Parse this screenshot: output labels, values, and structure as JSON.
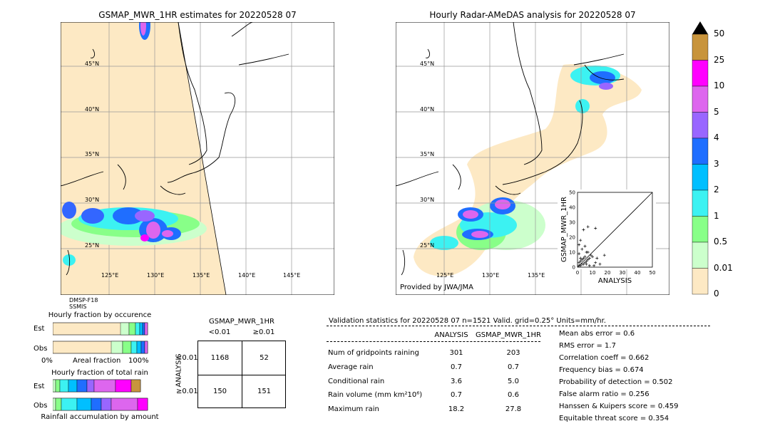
{
  "left_map": {
    "title": "GSMAP_MWR_1HR estimates for 20220528 07",
    "lat_labels": [
      "45°N",
      "40°N",
      "35°N",
      "30°N",
      "25°N"
    ],
    "lon_labels": [
      "125°E",
      "130°E",
      "135°E",
      "140°E",
      "145°E"
    ],
    "source_lines": [
      "DMSP-F18",
      "SSMIS"
    ]
  },
  "right_map": {
    "title": "Hourly Radar-AMeDAS analysis for 20220528 07",
    "lat_labels": [
      "45°N",
      "40°N",
      "35°N",
      "30°N",
      "25°N"
    ],
    "lon_labels": [
      "125°E",
      "130°E",
      "135°E"
    ],
    "credit": "Provided by JWA/JMA"
  },
  "colorbar": {
    "labels": [
      "50",
      "25",
      "10",
      "5",
      "4",
      "3",
      "2",
      "1",
      "0.5",
      "0.01",
      "0"
    ],
    "colors": [
      "#c8943c",
      "#ff00ff",
      "#dd66ee",
      "#9966ff",
      "#1f6eff",
      "#00bfff",
      "#3cf2f2",
      "#88ff88",
      "#ccffcc",
      "#fde9c4"
    ]
  },
  "occurrence": {
    "title": "Hourly fraction by occurence",
    "rows": [
      "Est",
      "Obs"
    ],
    "axis_left": "0%",
    "axis_mid": "Areal fraction",
    "axis_right": "100%"
  },
  "total_rain": {
    "title": "Hourly fraction of total rain",
    "rows": [
      "Est",
      "Obs"
    ],
    "footer": "Rainfall accumulation by amount"
  },
  "contingency": {
    "title": "GSMAP_MWR_1HR",
    "col_headers": [
      "<0.01",
      "≥0.01"
    ],
    "row_axis": "ANALYSIS",
    "row_headers": [
      "<0.01",
      "≥0.01"
    ],
    "cells": [
      [
        "1168",
        "52"
      ],
      [
        "150",
        "151"
      ]
    ]
  },
  "validation": {
    "header": "Validation statistics for 20220528 07  n=1521 Valid. grid=0.25° Units=mm/hr.",
    "col_headers": [
      "ANALYSIS",
      "GSMAP_MWR_1HR"
    ],
    "rows": [
      {
        "label": "Num of gridpoints raining",
        "a": "301",
        "b": "203"
      },
      {
        "label": "Average rain",
        "a": "0.7",
        "b": "0.7"
      },
      {
        "label": "Conditional rain",
        "a": "3.6",
        "b": "5.0"
      },
      {
        "label": "Rain volume (mm km²10⁶)",
        "a": "0.7",
        "b": "0.6"
      },
      {
        "label": "Maximum rain",
        "a": "18.2",
        "b": "27.8"
      }
    ],
    "scores": [
      "Mean abs error =    0.6",
      "RMS error =    1.7",
      "Correlation coeff =  0.662",
      "Frequency bias =  0.674",
      "Probability of detection =  0.502",
      "False alarm ratio =  0.256",
      "Hanssen & Kuipers score =  0.459",
      "Equitable threat score =  0.354"
    ]
  },
  "chart_data": {
    "type": "scatter",
    "xlabel": "ANALYSIS",
    "ylabel": "GSMAP_MWR_1HR",
    "xlim": [
      0,
      50
    ],
    "ylim": [
      0,
      50
    ],
    "ticks": [
      "0",
      "10",
      "20",
      "30",
      "40",
      "50"
    ],
    "points": [
      [
        1,
        1
      ],
      [
        2,
        1
      ],
      [
        3,
        2
      ],
      [
        1,
        3
      ],
      [
        4,
        2
      ],
      [
        2,
        4
      ],
      [
        5,
        3
      ],
      [
        3,
        5
      ],
      [
        6,
        4
      ],
      [
        4,
        6
      ],
      [
        7,
        5
      ],
      [
        5,
        7
      ],
      [
        8,
        6
      ],
      [
        6,
        2
      ],
      [
        2,
        6
      ],
      [
        9,
        8
      ],
      [
        10,
        7
      ],
      [
        7,
        10
      ],
      [
        12,
        3
      ],
      [
        15,
        2
      ],
      [
        18,
        8
      ],
      [
        3,
        12
      ],
      [
        5,
        14
      ],
      [
        1,
        9
      ],
      [
        2,
        18
      ],
      [
        4,
        25
      ],
      [
        7,
        27
      ],
      [
        12,
        26
      ],
      [
        8,
        1
      ],
      [
        11,
        1
      ],
      [
        1,
        15
      ],
      [
        6,
        10
      ],
      [
        13,
        6
      ]
    ]
  }
}
